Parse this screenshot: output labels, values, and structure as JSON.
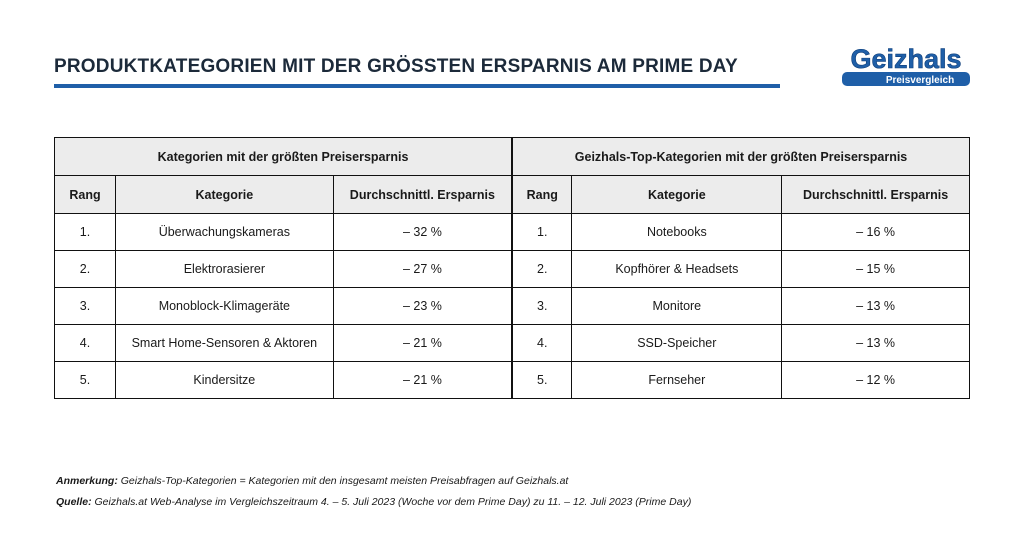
{
  "header": {
    "title": "PRODUKTKATEGORIEN MIT DER GRÖSSTEN ERSPARNIS AM PRIME DAY",
    "logo": {
      "name": "Geizhals",
      "tagline": "Preisvergleich"
    }
  },
  "table": {
    "groups": [
      "Kategorien mit der größten Preisersparnis",
      "Geizhals-Top-Kategorien mit der größten Preisersparnis"
    ],
    "columns": [
      "Rang",
      "Kategorie",
      "Durchschnittl. Ersparnis",
      "Rang",
      "Kategorie",
      "Durchschnittl. Ersparnis"
    ],
    "rows": [
      [
        "1.",
        "Überwachungskameras",
        "– 32 %",
        "1.",
        "Notebooks",
        "– 16 %"
      ],
      [
        "2.",
        "Elektrorasierer",
        "– 27 %",
        "2.",
        "Kopfhörer & Headsets",
        "– 15 %"
      ],
      [
        "3.",
        "Monoblock-Klimageräte",
        "– 23 %",
        "3.",
        "Monitore",
        "– 13 %"
      ],
      [
        "4.",
        "Smart Home-Sensoren & Aktoren",
        "– 21 %",
        "4.",
        "SSD-Speicher",
        "– 13 %"
      ],
      [
        "5.",
        "Kindersitze",
        "– 21 %",
        "5.",
        "Fernseher",
        "– 12 %"
      ]
    ]
  },
  "notes": [
    {
      "label": "Anmerkung:",
      "text": "Geizhals-Top-Kategorien = Kategorien mit den insgesamt meisten Preisabfragen auf Geizhals.at"
    },
    {
      "label": "Quelle:",
      "text": "Geizhals.at Web-Analyse im Vergleichszeitraum 4. – 5. Juli 2023 (Woche vor dem Prime Day) zu 11. – 12. Juli 2023 (Prime Day)"
    }
  ]
}
